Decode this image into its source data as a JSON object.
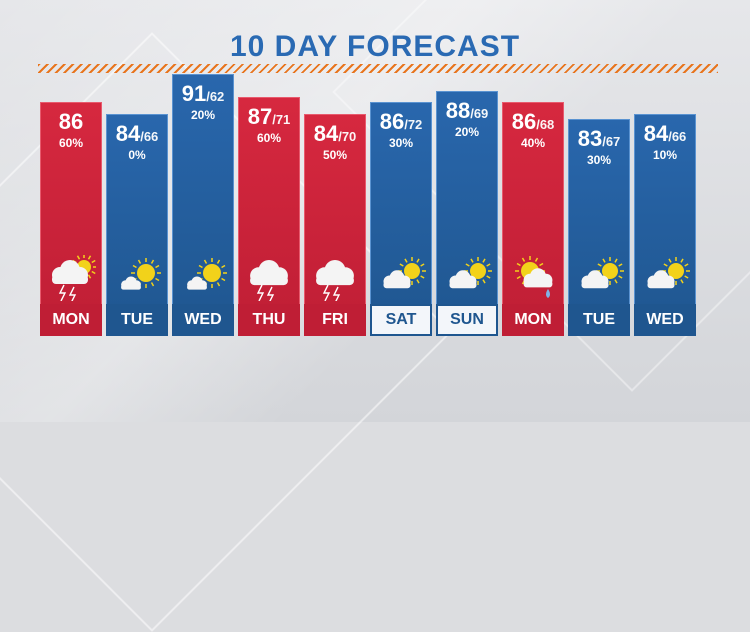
{
  "title": "10 DAY FORECAST",
  "days": [
    {
      "day": "MON",
      "hi": "86",
      "lo": "",
      "precip": "60%",
      "theme": "warm",
      "icon": "storm-partly-cloudy-icon",
      "weekend": false
    },
    {
      "day": "TUE",
      "hi": "84",
      "lo": "/66",
      "precip": "0%",
      "theme": "cool",
      "icon": "mostly-sunny-icon",
      "weekend": false
    },
    {
      "day": "WED",
      "hi": "91",
      "lo": "/62",
      "precip": "20%",
      "theme": "cool",
      "icon": "mostly-sunny-icon",
      "weekend": false
    },
    {
      "day": "THU",
      "hi": "87",
      "lo": "/71",
      "precip": "60%",
      "theme": "warm",
      "icon": "storm-cloud-icon",
      "weekend": false
    },
    {
      "day": "FRI",
      "hi": "84",
      "lo": "/70",
      "precip": "50%",
      "theme": "warm",
      "icon": "storm-cloud-icon",
      "weekend": false
    },
    {
      "day": "SAT",
      "hi": "86",
      "lo": "/72",
      "precip": "30%",
      "theme": "cool",
      "icon": "partly-cloudy-icon",
      "weekend": true
    },
    {
      "day": "SUN",
      "hi": "88",
      "lo": "/69",
      "precip": "20%",
      "theme": "cool",
      "icon": "partly-cloudy-icon",
      "weekend": true
    },
    {
      "day": "MON",
      "hi": "86",
      "lo": "/68",
      "precip": "40%",
      "theme": "warm",
      "icon": "sun-shower-icon",
      "weekend": false
    },
    {
      "day": "TUE",
      "hi": "83",
      "lo": "/67",
      "precip": "30%",
      "theme": "cool",
      "icon": "partly-cloudy-icon",
      "weekend": false
    },
    {
      "day": "WED",
      "hi": "84",
      "lo": "/66",
      "precip": "10%",
      "theme": "cool",
      "icon": "partly-cloudy-icon",
      "weekend": false
    }
  ],
  "colors": {
    "warm": "#bf1e35",
    "cool": "#1f568f",
    "title": "#2a6ab3",
    "stripe": "#e8751e"
  }
}
